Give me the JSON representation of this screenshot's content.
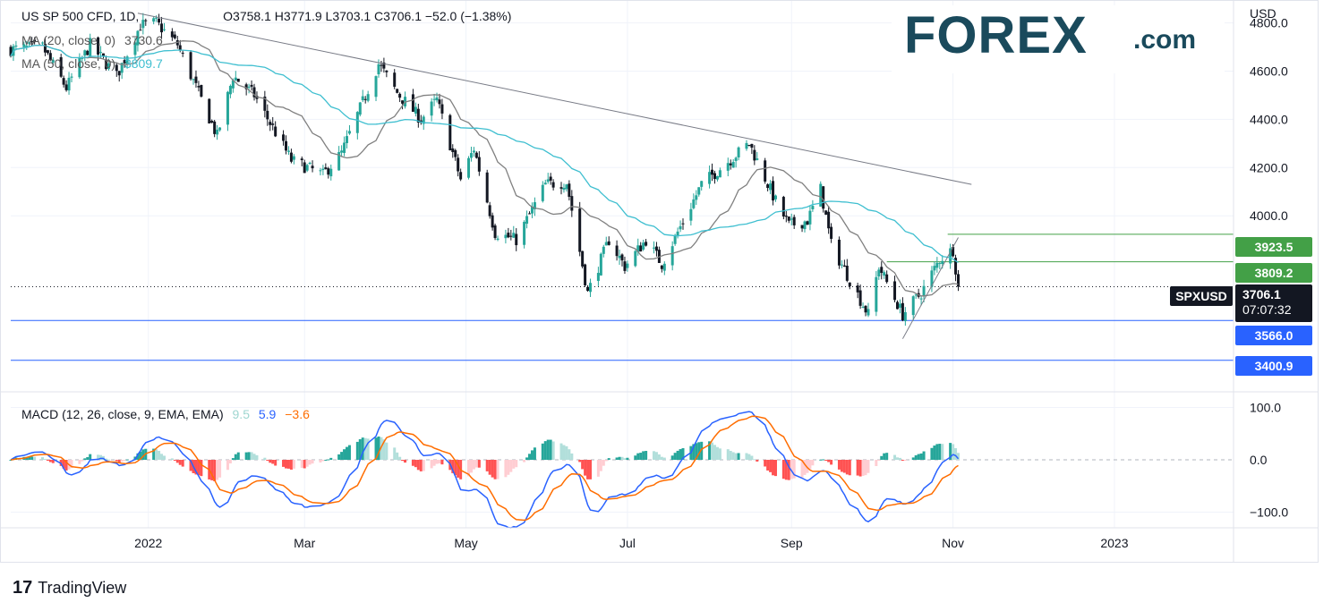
{
  "header": {
    "symbol": "US SP 500 CFD, 1D,",
    "ohlc": "O3758.1  H3771.9  L3703.1  C3706.1  −52.0 (−1.38%)",
    "ma20_label": "MA (20, close, 0)",
    "ma20_value": "3730.6",
    "ma50_label": "MA (50, close, 0)",
    "ma50_value": "3809.7"
  },
  "macd_header": {
    "label": "MACD (12, 26, close, 9, EMA, EMA)",
    "hist": "9.5",
    "macd": "5.9",
    "signal": "−3.6"
  },
  "currency": "USD",
  "logo": {
    "word": "FOREX",
    "suffix": ".com"
  },
  "brand": "TradingView",
  "price_axis_labels": [
    "4800.0",
    "4600.0",
    "4400.0",
    "4200.0",
    "4000.0"
  ],
  "macd_axis_labels": [
    "100.0",
    "0.0",
    "−100.0"
  ],
  "x_labels": [
    "2022",
    "Mar",
    "May",
    "Jul",
    "Sep",
    "Nov",
    "2023"
  ],
  "tags": {
    "r1": "3923.5",
    "r2": "3809.2",
    "symbol_tag": "SPXUSD",
    "last": "3706.1",
    "countdown": "07:07:32",
    "s1": "3566.0",
    "s2": "3400.9"
  },
  "colors": {
    "up": "#26a69a",
    "down": "#131722",
    "ma20": "#808080",
    "ma50": "#3fbfd0",
    "support": "#2962ff",
    "resistance": "#43a047",
    "macd": "#2962ff",
    "signal": "#ff6d00",
    "hist_up_strong": "#26a69a",
    "hist_up_weak": "#b2dfdb",
    "hist_dn_strong": "#ff5252",
    "hist_dn_weak": "#ffcdd2"
  },
  "chart_data": {
    "type": "candlestick",
    "title": "US SP 500 CFD, 1D",
    "y_range": [
      3270,
      4880
    ],
    "macd_range": [
      -130,
      130
    ],
    "x_ticks": [
      {
        "label": "2022",
        "t": "2022-01-01"
      },
      {
        "label": "Mar",
        "t": "2022-03-01"
      },
      {
        "label": "May",
        "t": "2022-05-01"
      },
      {
        "label": "Jul",
        "t": "2022-07-01"
      },
      {
        "label": "Sep",
        "t": "2022-09-01"
      },
      {
        "label": "Nov",
        "t": "2022-11-01"
      },
      {
        "label": "2023",
        "t": "2023-01-01"
      }
    ],
    "x_range": [
      "2021-11-10",
      "2023-02-15"
    ],
    "anchors": [
      {
        "t": "2021-11-10",
        "v": 4690
      },
      {
        "t": "2021-11-22",
        "v": 4700
      },
      {
        "t": "2021-12-01",
        "v": 4530
      },
      {
        "t": "2021-12-10",
        "v": 4710
      },
      {
        "t": "2021-12-20",
        "v": 4580
      },
      {
        "t": "2021-12-29",
        "v": 4790
      },
      {
        "t": "2022-01-04",
        "v": 4800
      },
      {
        "t": "2022-01-12",
        "v": 4710
      },
      {
        "t": "2022-01-27",
        "v": 4330
      },
      {
        "t": "2022-02-02",
        "v": 4580
      },
      {
        "t": "2022-02-10",
        "v": 4500
      },
      {
        "t": "2022-02-24",
        "v": 4230
      },
      {
        "t": "2022-03-08",
        "v": 4170
      },
      {
        "t": "2022-03-15",
        "v": 4260
      },
      {
        "t": "2022-03-29",
        "v": 4630
      },
      {
        "t": "2022-04-05",
        "v": 4510
      },
      {
        "t": "2022-04-14",
        "v": 4400
      },
      {
        "t": "2022-04-20",
        "v": 4480
      },
      {
        "t": "2022-04-29",
        "v": 4150
      },
      {
        "t": "2022-05-04",
        "v": 4280
      },
      {
        "t": "2022-05-12",
        "v": 3930
      },
      {
        "t": "2022-05-20",
        "v": 3900
      },
      {
        "t": "2022-05-31",
        "v": 4130
      },
      {
        "t": "2022-06-08",
        "v": 4140
      },
      {
        "t": "2022-06-16",
        "v": 3680
      },
      {
        "t": "2022-06-24",
        "v": 3900
      },
      {
        "t": "2022-06-30",
        "v": 3790
      },
      {
        "t": "2022-07-08",
        "v": 3900
      },
      {
        "t": "2022-07-14",
        "v": 3800
      },
      {
        "t": "2022-07-29",
        "v": 4130
      },
      {
        "t": "2022-08-16",
        "v": 4300
      },
      {
        "t": "2022-08-26",
        "v": 4060
      },
      {
        "t": "2022-08-31",
        "v": 3960
      },
      {
        "t": "2022-09-07",
        "v": 3980
      },
      {
        "t": "2022-09-12",
        "v": 4110
      },
      {
        "t": "2022-09-16",
        "v": 3880
      },
      {
        "t": "2022-09-30",
        "v": 3590
      },
      {
        "t": "2022-10-04",
        "v": 3790
      },
      {
        "t": "2022-10-13",
        "v": 3590
      },
      {
        "t": "2022-10-20",
        "v": 3680
      },
      {
        "t": "2022-10-27",
        "v": 3820
      },
      {
        "t": "2022-11-01",
        "v": 3860
      },
      {
        "t": "2022-11-03",
        "v": 3706
      }
    ],
    "ma20_last": 3730.6,
    "ma50_last": 3809.7,
    "trendline": {
      "from": {
        "t": "2021-12-28",
        "v": 4840
      },
      "to": {
        "t": "2022-11-08",
        "v": 4130
      }
    },
    "uptrend_line": {
      "from": {
        "t": "2022-10-13",
        "v": 3490
      },
      "to": {
        "t": "2022-11-03",
        "v": 3910
      }
    },
    "horizontal_levels": [
      {
        "value": 3923.5,
        "color": "resistance",
        "from": "2022-10-30"
      },
      {
        "value": 3809.2,
        "color": "resistance",
        "from": "2022-10-07"
      },
      {
        "value": 3566.0,
        "color": "support",
        "from": "2021-11-10"
      },
      {
        "value": 3400.9,
        "color": "support",
        "from": "2021-11-10"
      }
    ],
    "last_price": 3706.1,
    "macd_last": {
      "macd": 5.9,
      "signal": -3.6,
      "hist": 9.5
    }
  }
}
